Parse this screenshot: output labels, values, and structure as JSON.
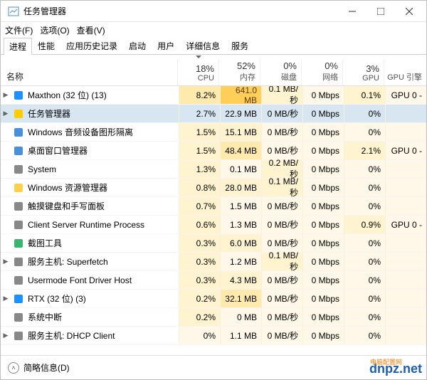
{
  "window": {
    "title": "任务管理器",
    "menu": [
      "文件(F)",
      "选项(O)",
      "查看(V)"
    ],
    "tabs": [
      "进程",
      "性能",
      "应用历史记录",
      "启动",
      "用户",
      "详细信息",
      "服务"
    ],
    "active_tab": 0
  },
  "columns": {
    "name": "名称",
    "cols": [
      {
        "pct": "18%",
        "label": "CPU",
        "sorted": true
      },
      {
        "pct": "52%",
        "label": "内存"
      },
      {
        "pct": "0%",
        "label": "磁盘"
      },
      {
        "pct": "0%",
        "label": "网络"
      },
      {
        "pct": "3%",
        "label": "GPU"
      }
    ],
    "gpu_engine": "GPU 引擎"
  },
  "processes": [
    {
      "expand": "▶",
      "icon_color": "#1e90ff",
      "name": "Maxthon (32 位) (13)",
      "cpu": "8.2%",
      "mem": "641.0 MB",
      "disk": "0.1 MB/秒",
      "net": "0 Mbps",
      "gpu": "0.1%",
      "gpu_eng": "GPU 0 -",
      "heat": [
        2,
        4,
        1,
        0,
        1
      ]
    },
    {
      "expand": "▶",
      "icon_color": "#ffcc00",
      "name": "任务管理器",
      "selected": true,
      "cpu": "2.7%",
      "mem": "22.9 MB",
      "disk": "0 MB/秒",
      "net": "0 Mbps",
      "gpu": "0%",
      "gpu_eng": "",
      "heat": [
        1,
        1,
        0,
        0,
        0
      ]
    },
    {
      "expand": "",
      "icon_color": "#4a90d9",
      "name": "Windows 音频设备图形隔离",
      "cpu": "1.5%",
      "mem": "15.1 MB",
      "disk": "0 MB/秒",
      "net": "0 Mbps",
      "gpu": "0%",
      "gpu_eng": "",
      "heat": [
        1,
        1,
        0,
        0,
        0
      ]
    },
    {
      "expand": "",
      "icon_color": "#4a90d9",
      "name": "桌面窗口管理器",
      "cpu": "1.5%",
      "mem": "48.4 MB",
      "disk": "0 MB/秒",
      "net": "0 Mbps",
      "gpu": "2.1%",
      "gpu_eng": "GPU 0 -",
      "heat": [
        1,
        2,
        0,
        0,
        1
      ]
    },
    {
      "expand": "",
      "icon_color": "#888888",
      "name": "System",
      "cpu": "1.3%",
      "mem": "0.1 MB",
      "disk": "0.2 MB/秒",
      "net": "0 Mbps",
      "gpu": "0%",
      "gpu_eng": "",
      "heat": [
        1,
        0,
        1,
        0,
        0
      ]
    },
    {
      "expand": "",
      "icon_color": "#ffd050",
      "name": "Windows 资源管理器",
      "cpu": "0.8%",
      "mem": "28.0 MB",
      "disk": "0.1 MB/秒",
      "net": "0 Mbps",
      "gpu": "0%",
      "gpu_eng": "",
      "heat": [
        1,
        1,
        1,
        0,
        0
      ]
    },
    {
      "expand": "",
      "icon_color": "#888888",
      "name": "触摸键盘和手写面板",
      "cpu": "0.7%",
      "mem": "1.5 MB",
      "disk": "0 MB/秒",
      "net": "0 Mbps",
      "gpu": "0%",
      "gpu_eng": "",
      "heat": [
        1,
        0,
        0,
        0,
        0
      ]
    },
    {
      "expand": "",
      "icon_color": "#888888",
      "name": "Client Server Runtime Process",
      "cpu": "0.6%",
      "mem": "1.3 MB",
      "disk": "0 MB/秒",
      "net": "0 Mbps",
      "gpu": "0.9%",
      "gpu_eng": "GPU 0 -",
      "heat": [
        1,
        0,
        0,
        0,
        1
      ]
    },
    {
      "expand": "",
      "icon_color": "#3cb371",
      "name": "截图工具",
      "cpu": "0.3%",
      "mem": "6.0 MB",
      "disk": "0 MB/秒",
      "net": "0 Mbps",
      "gpu": "0%",
      "gpu_eng": "",
      "heat": [
        1,
        1,
        0,
        0,
        0
      ]
    },
    {
      "expand": "▶",
      "icon_color": "#888888",
      "name": "服务主机: Superfetch",
      "cpu": "0.3%",
      "mem": "1.2 MB",
      "disk": "0.1 MB/秒",
      "net": "0 Mbps",
      "gpu": "0%",
      "gpu_eng": "",
      "heat": [
        1,
        0,
        1,
        0,
        0
      ]
    },
    {
      "expand": "",
      "icon_color": "#888888",
      "name": "Usermode Font Driver Host",
      "cpu": "0.3%",
      "mem": "4.3 MB",
      "disk": "0 MB/秒",
      "net": "0 Mbps",
      "gpu": "0%",
      "gpu_eng": "",
      "heat": [
        1,
        1,
        0,
        0,
        0
      ]
    },
    {
      "expand": "▶",
      "icon_color": "#1e90ff",
      "name": "RTX (32 位) (3)",
      "cpu": "0.2%",
      "mem": "32.1 MB",
      "disk": "0 MB/秒",
      "net": "0 Mbps",
      "gpu": "0%",
      "gpu_eng": "",
      "heat": [
        1,
        2,
        0,
        0,
        0
      ]
    },
    {
      "expand": "",
      "icon_color": "#888888",
      "name": "系统中断",
      "cpu": "0.2%",
      "mem": "0 MB",
      "disk": "0 MB/秒",
      "net": "0 Mbps",
      "gpu": "0%",
      "gpu_eng": "",
      "heat": [
        1,
        0,
        0,
        0,
        0
      ]
    },
    {
      "expand": "▶",
      "icon_color": "#888888",
      "name": "服务主机: DHCP Client",
      "cpu": "0%",
      "mem": "1.1 MB",
      "disk": "0 MB/秒",
      "net": "0 Mbps",
      "gpu": "0%",
      "gpu_eng": "",
      "heat": [
        0,
        0,
        0,
        0,
        0
      ]
    }
  ],
  "bottom": {
    "fewer_details": "简略信息(D)"
  },
  "watermark": {
    "dn": "dn",
    "pz": "电脑配置网",
    "net": "pz.net"
  }
}
